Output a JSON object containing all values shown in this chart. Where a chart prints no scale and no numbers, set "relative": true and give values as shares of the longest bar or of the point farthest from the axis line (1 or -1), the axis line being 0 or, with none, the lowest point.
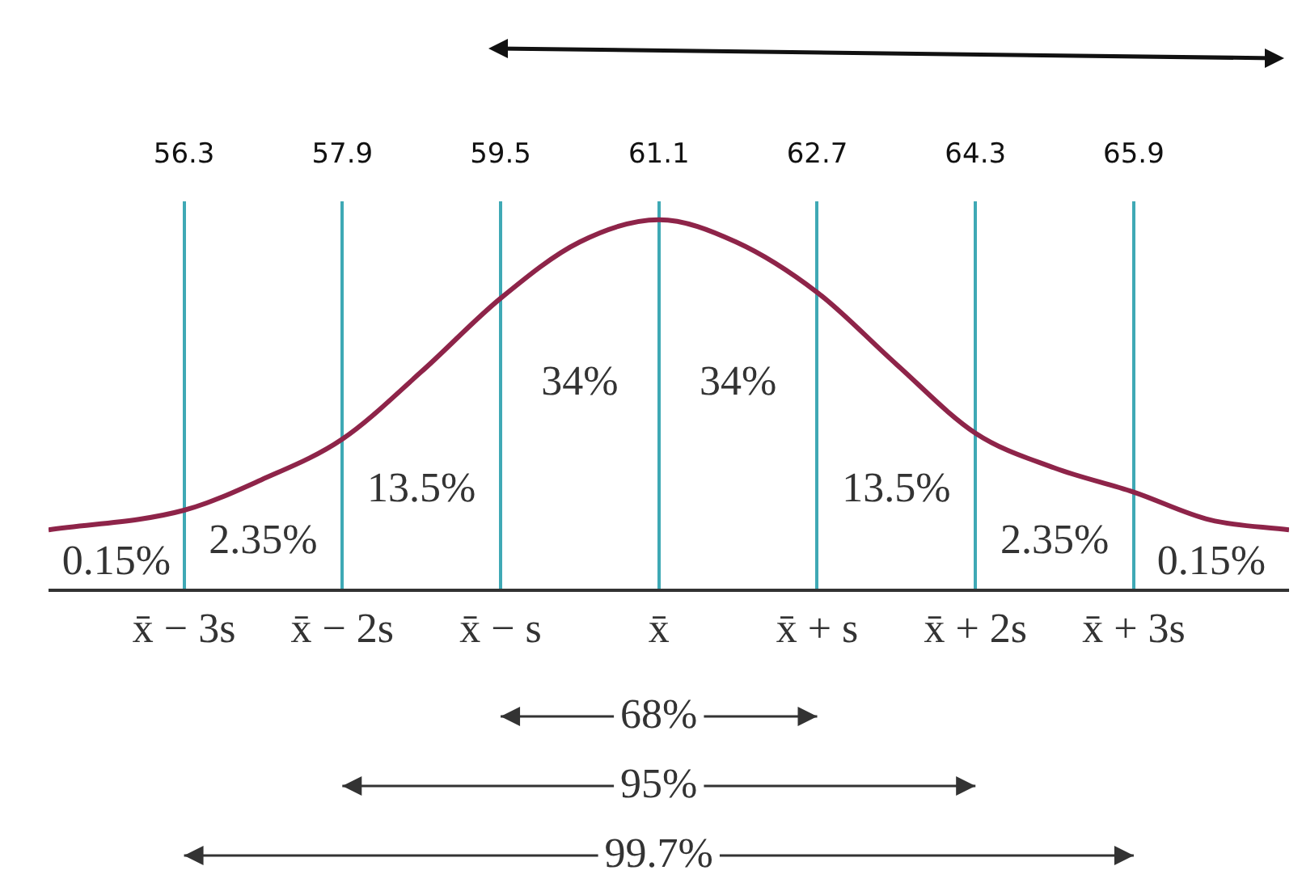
{
  "chart_data": {
    "type": "line",
    "relative": true,
    "series": [
      {
        "color": "#8e2449",
        "x": [
          54.93,
          56.3,
          57.08,
          57.9,
          58.7,
          59.5,
          60.3,
          61.1,
          61.88,
          62.7,
          63.5,
          64.3,
          65.1,
          65.9,
          66.67,
          67.47
        ],
        "values": [
          0.163,
          0.216,
          0.298,
          0.408,
          0.59,
          0.788,
          0.94,
          1,
          0.94,
          0.804,
          0.61,
          0.424,
          0.33,
          0.265,
          0.19,
          0.163
        ]
      }
    ],
    "xlim": [
      54.93,
      67.47
    ],
    "xticks": [
      56.3,
      57.9,
      59.5,
      61.1,
      62.7,
      64.3,
      65.9
    ],
    "grid": "x",
    "legend": false,
    "marker": "none",
    "line_style": "solid",
    "annotations": [
      "0.15%",
      "2.35%",
      "13.5%",
      "34%",
      "34%",
      "13.5%",
      "2.35%",
      "0.15%",
      "x̄ − 3s",
      "x̄ − 2s",
      "x̄ − s",
      "x̄",
      "x̄ + s",
      "x̄ + 2s",
      "x̄ + 3s",
      "68%",
      "95%",
      "99.7%"
    ]
  }
}
